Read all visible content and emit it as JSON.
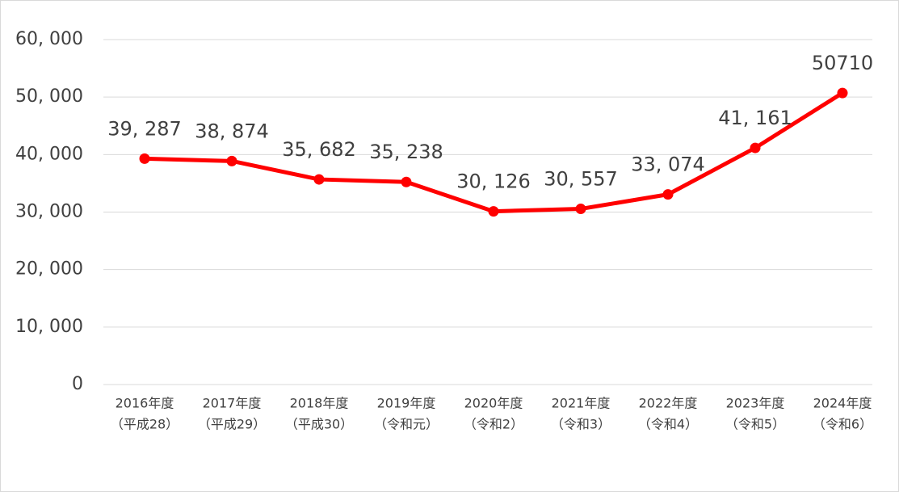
{
  "chart_data": {
    "type": "line",
    "categories": [
      [
        "2016年度",
        "（平成28）"
      ],
      [
        "2017年度",
        "（平成29）"
      ],
      [
        "2018年度",
        "（平成30）"
      ],
      [
        "2019年度",
        "（令和元）"
      ],
      [
        "2020年度",
        "（令和2）"
      ],
      [
        "2021年度",
        "（令和3）"
      ],
      [
        "2022年度",
        "（令和4）"
      ],
      [
        "2023年度",
        "（令和5）"
      ],
      [
        "2024年度",
        "（令和6）"
      ]
    ],
    "series": [
      {
        "name": "",
        "color": "#ff0000",
        "values": [
          39287,
          38874,
          35682,
          35238,
          30126,
          30557,
          33074,
          41161,
          50710
        ],
        "value_labels": [
          "39, 287",
          "38, 874",
          "35, 682",
          "35, 238",
          "30, 126",
          "30, 557",
          "33, 074",
          "41, 161",
          "50710"
        ]
      }
    ],
    "ylim": [
      0,
      60000
    ],
    "yticks": [
      0,
      {
        "value": 10000,
        "label": "10, 000"
      },
      {
        "value": 20000,
        "label": "20, 000"
      },
      {
        "value": 30000,
        "label": "30, 000"
      },
      {
        "value": 40000,
        "label": "40, 000"
      },
      {
        "value": 50000,
        "label": "50, 000"
      },
      {
        "value": 60000,
        "label": "60, 000"
      }
    ],
    "grid": true
  }
}
